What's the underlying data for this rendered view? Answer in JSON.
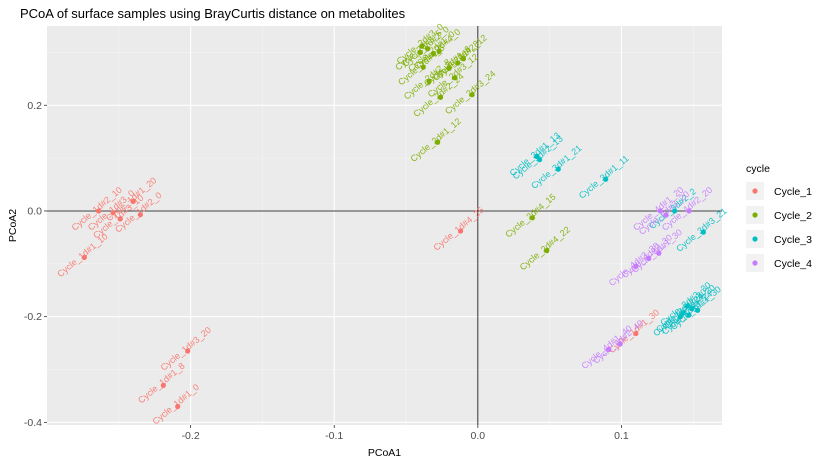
{
  "chart_data": {
    "type": "scatter",
    "title": "PCoA of surface samples using BrayCurtis distance on metabolites",
    "xlabel": "PCoA1",
    "ylabel": "PCoA2",
    "xlim": [
      -0.3,
      0.17
    ],
    "ylim": [
      -0.405,
      0.35
    ],
    "xticks": [
      -0.2,
      -0.1,
      0.0,
      0.1
    ],
    "xtick_labels": [
      "-0.2",
      "-0.1",
      "0.0",
      "0.1"
    ],
    "yticks": [
      -0.4,
      -0.2,
      0.0,
      0.2
    ],
    "ytick_labels": [
      "-0.4",
      "-0.2",
      "0.0",
      "0.2"
    ],
    "reference_lines": {
      "x": 0,
      "y": 0
    },
    "grid": true,
    "legend": {
      "title": "cycle",
      "position": "right",
      "entries": [
        "Cycle_1",
        "Cycle_2",
        "Cycle_3",
        "Cycle_4"
      ]
    },
    "colors": {
      "Cycle_1": "#F8766D",
      "Cycle_2": "#7CAE00",
      "Cycle_3": "#00BFC4",
      "Cycle_4": "#C77CFF"
    },
    "series": [
      {
        "name": "Cycle_1",
        "points": [
          {
            "x": -0.264,
            "y": 0.0,
            "label": "Cycle_1d#2_10"
          },
          {
            "x": -0.254,
            "y": -0.003,
            "label": "Cycle_1d#3_0"
          },
          {
            "x": -0.249,
            "y": -0.015,
            "label": "Cycle_1d#3_10"
          },
          {
            "x": -0.24,
            "y": 0.018,
            "label": "Cycle_1d#1_20"
          },
          {
            "x": -0.235,
            "y": -0.007,
            "label": "Cycle_1d#2_0"
          },
          {
            "x": -0.274,
            "y": -0.088,
            "label": "Cycle_1d#1_10"
          },
          {
            "x": -0.012,
            "y": -0.038,
            "label": "Cycle_1d#4_25"
          },
          {
            "x": -0.202,
            "y": -0.265,
            "label": "Cycle_1d#3_20"
          },
          {
            "x": -0.219,
            "y": -0.33,
            "label": "Cycle_1d#1_8"
          },
          {
            "x": -0.209,
            "y": -0.37,
            "label": "Cycle_1d#1_0"
          },
          {
            "x": 0.11,
            "y": -0.232,
            "label": "Cycle_1d#1_30"
          }
        ]
      },
      {
        "name": "Cycle_2",
        "points": [
          {
            "x": -0.039,
            "y": 0.312,
            "label": "Cycle_2d#3_0"
          },
          {
            "x": -0.035,
            "y": 0.307,
            "label": "Cycle_2d#2_0"
          },
          {
            "x": -0.031,
            "y": 0.298,
            "label": "Cycle_2d#1_0"
          },
          {
            "x": -0.027,
            "y": 0.302,
            "label": "Cycle_2d#4_0"
          },
          {
            "x": -0.04,
            "y": 0.3,
            "label": "Cycle_2d#3_5"
          },
          {
            "x": -0.01,
            "y": 0.288,
            "label": "Cycle_2d#2_12"
          },
          {
            "x": -0.014,
            "y": 0.28,
            "label": "Cycle_2d#4_8"
          },
          {
            "x": -0.02,
            "y": 0.27,
            "label": "Cycle_2d#1_6"
          },
          {
            "x": -0.038,
            "y": 0.272,
            "label": "Cycle_2d#4_5"
          },
          {
            "x": -0.016,
            "y": 0.252,
            "label": "Cycle_2d#3_12"
          },
          {
            "x": -0.034,
            "y": 0.245,
            "label": "Cycle_2d#2_8"
          },
          {
            "x": -0.004,
            "y": 0.22,
            "label": "Cycle_2d#3_24"
          },
          {
            "x": -0.026,
            "y": 0.215,
            "label": "Cycle_2d#2_24"
          },
          {
            "x": -0.028,
            "y": 0.13,
            "label": "Cycle_2d#1_12"
          },
          {
            "x": 0.038,
            "y": -0.013,
            "label": "Cycle_2d#4_15"
          },
          {
            "x": 0.048,
            "y": -0.075,
            "label": "Cycle_2d#4_22"
          }
        ]
      },
      {
        "name": "Cycle_3",
        "points": [
          {
            "x": 0.041,
            "y": 0.103,
            "label": "Cycle_3d#1_13"
          },
          {
            "x": 0.043,
            "y": 0.097,
            "label": "Cycle_3d#2_13"
          },
          {
            "x": 0.056,
            "y": 0.079,
            "label": "Cycle_3d#1_21"
          },
          {
            "x": 0.089,
            "y": 0.06,
            "label": "Cycle_3d#1_11"
          },
          {
            "x": 0.137,
            "y": 0.0,
            "label": "Cycle_3d#2_2"
          },
          {
            "x": 0.157,
            "y": -0.04,
            "label": "Cycle_3d#3_21"
          },
          {
            "x": 0.146,
            "y": -0.18,
            "label": "Cycle_3d#3_30"
          },
          {
            "x": 0.149,
            "y": -0.185,
            "label": "Cycle_3d#4_30"
          },
          {
            "x": 0.153,
            "y": -0.188,
            "label": "Cycle_3d#1_30"
          },
          {
            "x": 0.143,
            "y": -0.193,
            "label": "Cycle_3d#2_30"
          },
          {
            "x": 0.147,
            "y": -0.197,
            "label": "Cycle_3d#3_24"
          },
          {
            "x": 0.141,
            "y": -0.2,
            "label": "Cycle_3d#4_24"
          }
        ]
      },
      {
        "name": "Cycle_4",
        "points": [
          {
            "x": 0.127,
            "y": 0.0,
            "label": "Cycle_4d#1_20"
          },
          {
            "x": 0.147,
            "y": 0.0,
            "label": "Cycle_4d#2_20"
          },
          {
            "x": 0.131,
            "y": -0.008,
            "label": "Cycle_4d#3_20"
          },
          {
            "x": 0.126,
            "y": -0.08,
            "label": "Cycle_4d#1_30"
          },
          {
            "x": 0.119,
            "y": -0.09,
            "label": "Cycle_4d#2_30"
          },
          {
            "x": 0.11,
            "y": -0.105,
            "label": "Cycle_4d#3_30"
          },
          {
            "x": 0.091,
            "y": -0.262,
            "label": "Cycle_4d#1_40"
          },
          {
            "x": 0.099,
            "y": -0.252,
            "label": "Cycle_4d#2_40"
          }
        ]
      }
    ]
  }
}
